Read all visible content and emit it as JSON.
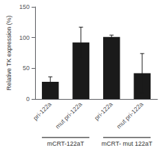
{
  "chart_data": {
    "type": "bar",
    "categories": [
      "pri-122a",
      "mut pri-122a",
      "pri-122a",
      "mut pri-122a"
    ],
    "values": [
      28,
      92,
      101,
      42
    ],
    "errors": [
      8,
      25,
      3,
      32
    ],
    "color": "#1a1a1a",
    "ylabel": "Relative TK expression (%)",
    "annotations": [
      "mCRT-122aT",
      "mCRT- mut 122aT"
    ],
    "ylim": [
      0,
      150
    ],
    "yticks": [
      0,
      50,
      100,
      150
    ],
    "grid": false
  }
}
